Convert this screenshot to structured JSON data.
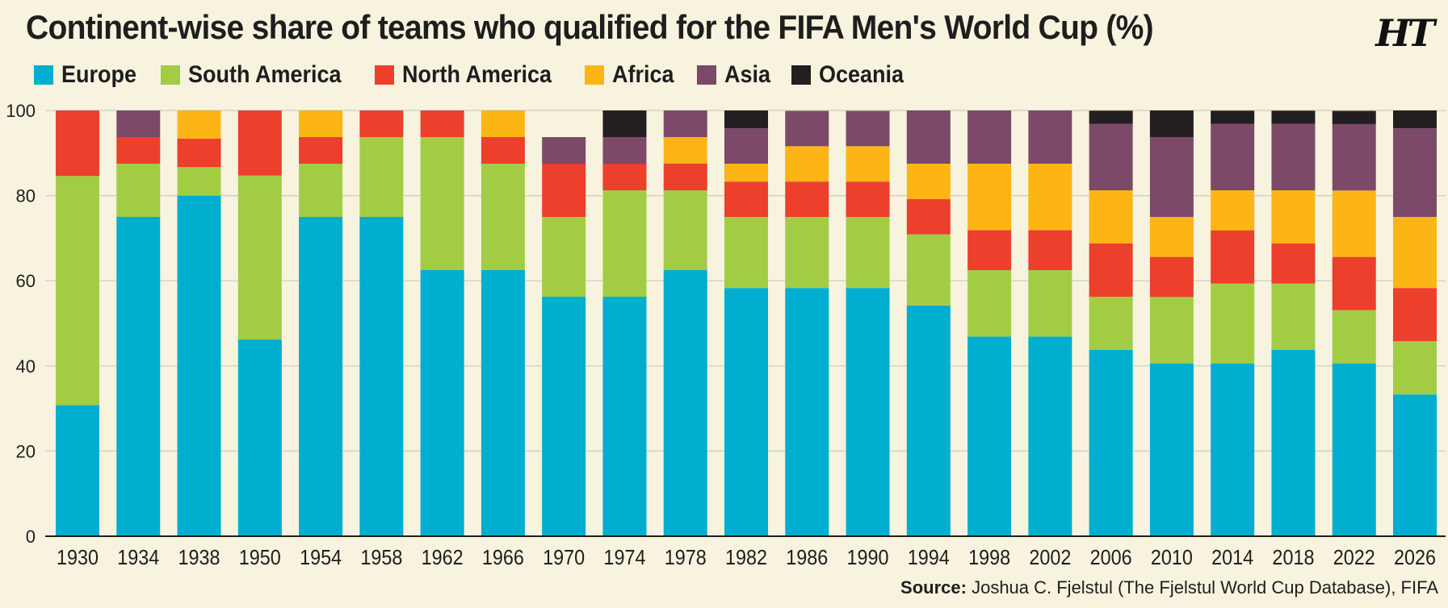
{
  "title": "Continent-wise share of teams who qualified for the FIFA Men's World Cup (%)",
  "logo_text": "HT",
  "source": {
    "label": "Source:",
    "text": "Joshua C. Fjelstul (The Fjelstul World Cup Database), FIFA"
  },
  "colors": {
    "background": "#f7f3df",
    "Europe": "#00aecf",
    "South America": "#a3cc45",
    "North America": "#ec3f2c",
    "Africa": "#fdb515",
    "Asia": "#7c4a68",
    "Oceania": "#231f20"
  },
  "chart_data": {
    "type": "bar",
    "stacked": true,
    "categories": [
      "1930",
      "1934",
      "1938",
      "1950",
      "1954",
      "1958",
      "1962",
      "1966",
      "1970",
      "1974",
      "1978",
      "1982",
      "1986",
      "1990",
      "1994",
      "1998",
      "2002",
      "2006",
      "2010",
      "2014",
      "2018",
      "2022",
      "2026"
    ],
    "series": [
      {
        "name": "Europe",
        "values": [
          30.8,
          75.0,
          80.0,
          46.2,
          75.0,
          75.0,
          62.5,
          62.5,
          56.25,
          56.25,
          62.5,
          58.3,
          58.3,
          58.3,
          54.2,
          46.9,
          46.9,
          43.75,
          40.6,
          40.6,
          43.75,
          40.6,
          33.3
        ]
      },
      {
        "name": "South America",
        "values": [
          53.8,
          12.5,
          6.7,
          38.5,
          12.5,
          18.75,
          31.25,
          25.0,
          18.75,
          25.0,
          18.75,
          16.7,
          16.7,
          16.7,
          16.7,
          15.6,
          15.6,
          12.5,
          15.6,
          18.75,
          15.6,
          12.5,
          12.5
        ]
      },
      {
        "name": "North America",
        "values": [
          15.4,
          6.25,
          6.7,
          15.4,
          6.25,
          6.25,
          6.25,
          6.25,
          12.5,
          6.25,
          6.25,
          8.3,
          8.3,
          8.3,
          8.3,
          9.4,
          9.4,
          12.5,
          9.4,
          12.5,
          9.4,
          12.5,
          12.5
        ]
      },
      {
        "name": "Africa",
        "values": [
          0,
          0,
          6.7,
          0,
          6.25,
          0,
          0,
          6.25,
          0,
          0,
          6.25,
          4.2,
          8.3,
          8.3,
          8.3,
          15.6,
          15.6,
          12.5,
          9.4,
          9.4,
          12.5,
          15.6,
          16.7
        ]
      },
      {
        "name": "Asia",
        "values": [
          0,
          6.25,
          0,
          0,
          0,
          0,
          0,
          0,
          6.25,
          6.25,
          6.25,
          8.3,
          8.3,
          8.3,
          12.5,
          12.5,
          12.5,
          15.6,
          18.75,
          15.6,
          15.6,
          15.6,
          20.8
        ]
      },
      {
        "name": "Oceania",
        "values": [
          0,
          0,
          0,
          0,
          0,
          0,
          0,
          0,
          0,
          6.25,
          0,
          4.2,
          0,
          0,
          0,
          0,
          0,
          3.1,
          6.25,
          3.1,
          3.1,
          3.1,
          4.2
        ]
      }
    ],
    "ylim": [
      0,
      100
    ],
    "yticks": [
      "0",
      "20",
      "40",
      "60",
      "80",
      "100"
    ],
    "grid": true,
    "legend": "top-left"
  }
}
